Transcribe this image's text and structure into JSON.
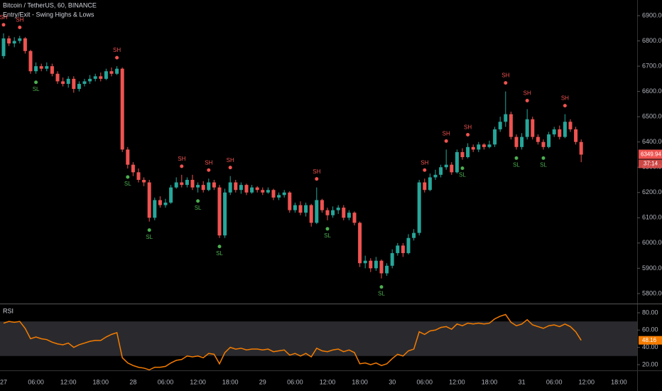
{
  "chart_data": [
    {
      "type": "candlestick",
      "title": "Bitcoin / TetherUS, 60, BINANCE",
      "subtitle": "Entry/Exit - Swing Highs & Lows",
      "up_color": "#26a69a",
      "down_color": "#ef5350",
      "sh_color": "#ef5350",
      "sl_color": "#4caf50",
      "ylim": [
        5766,
        6962
      ],
      "yticks": [
        {
          "value": 5800,
          "label": "5800.00"
        },
        {
          "value": 5900,
          "label": "5900.00"
        },
        {
          "value": 6000,
          "label": "6000.00"
        },
        {
          "value": 6100,
          "label": "6100.00"
        },
        {
          "value": 6200,
          "label": "6200.00"
        },
        {
          "value": 6300,
          "label": "6300.00"
        },
        {
          "value": 6400,
          "label": "6400.00"
        },
        {
          "value": 6500,
          "label": "6500.00"
        },
        {
          "value": 6600,
          "label": "6600.00"
        },
        {
          "value": 6700,
          "label": "6700.00"
        },
        {
          "value": 6800,
          "label": "6800.00"
        },
        {
          "value": 6900,
          "label": "6900.00"
        }
      ],
      "open": [
        6740,
        6810,
        6790,
        6800,
        6810,
        6760,
        6680,
        6700,
        6690,
        6700,
        6670,
        6640,
        6630,
        6650,
        6610,
        6630,
        6640,
        6650,
        6660,
        6650,
        6680,
        6670,
        6690,
        6370,
        6310,
        6280,
        6250,
        6240,
        6100,
        6170,
        6150,
        6160,
        6220,
        6240,
        6230,
        6250,
        6220,
        6230,
        6210,
        6240,
        6220,
        6030,
        6200,
        6240,
        6210,
        6230,
        6200,
        6220,
        6210,
        6200,
        6210,
        6180,
        6190,
        6200,
        6130,
        6150,
        6120,
        6150,
        6080,
        6170,
        6130,
        6110,
        6130,
        6140,
        6100,
        6120,
        6080,
        5920,
        5930,
        5900,
        5930,
        5880,
        5910,
        5960,
        5990,
        5960,
        6020,
        6040,
        6240,
        6210,
        6260,
        6270,
        6300,
        6310,
        6280,
        6360,
        6340,
        6380,
        6370,
        6390,
        6380,
        6390,
        6450,
        6480,
        6510,
        6420,
        6380,
        6420,
        6490,
        6420,
        6400,
        6380,
        6430,
        6450,
        6420,
        6480,
        6450,
        6400,
        null,
        null,
        null,
        null,
        null,
        null,
        null,
        null,
        null,
        null
      ],
      "high": [
        6830,
        6820,
        6815,
        6820,
        6815,
        6765,
        6715,
        6710,
        6715,
        6710,
        6680,
        6655,
        6660,
        6660,
        6640,
        6650,
        6665,
        6670,
        6675,
        6690,
        6695,
        6700,
        6695,
        6380,
        6320,
        6295,
        6260,
        6250,
        6180,
        6185,
        6175,
        6230,
        6260,
        6270,
        6260,
        6270,
        6240,
        6245,
        6255,
        6250,
        6230,
        6215,
        6265,
        6250,
        6240,
        6235,
        6230,
        6225,
        6220,
        6220,
        6215,
        6200,
        6210,
        6205,
        6160,
        6165,
        6160,
        6155,
        6220,
        6175,
        6140,
        6145,
        6150,
        6150,
        6130,
        6125,
        6085,
        5950,
        5940,
        5945,
        5935,
        5920,
        5975,
        6000,
        6000,
        6035,
        6055,
        6250,
        6255,
        6275,
        6290,
        6310,
        6370,
        6320,
        6370,
        6375,
        6395,
        6390,
        6400,
        6395,
        6405,
        6460,
        6500,
        6600,
        6520,
        6430,
        6435,
        6530,
        6500,
        6430,
        6410,
        6440,
        6460,
        6465,
        6510,
        6490,
        6460,
        6410,
        null,
        null,
        null,
        null,
        null,
        null,
        null,
        null,
        null,
        null
      ],
      "low": [
        6730,
        6780,
        6775,
        6790,
        6750,
        6670,
        6670,
        6680,
        6680,
        6660,
        6630,
        6620,
        6615,
        6595,
        6600,
        6620,
        6630,
        6640,
        6640,
        6645,
        6660,
        6665,
        6360,
        6295,
        6265,
        6240,
        6225,
        6085,
        6090,
        6140,
        6140,
        6155,
        6215,
        6220,
        6220,
        6210,
        6200,
        6200,
        6205,
        6210,
        6020,
        6020,
        6190,
        6200,
        6195,
        6190,
        6195,
        6200,
        6190,
        6195,
        6170,
        6170,
        6180,
        6120,
        6120,
        6110,
        6105,
        6065,
        6075,
        6120,
        6090,
        6100,
        6115,
        6090,
        6090,
        6070,
        5905,
        5900,
        5885,
        5890,
        5860,
        5870,
        5900,
        5950,
        5945,
        5955,
        6010,
        6030,
        6200,
        6205,
        6250,
        6260,
        6290,
        6270,
        6275,
        6330,
        6335,
        6360,
        6360,
        6370,
        6375,
        6380,
        6440,
        6460,
        6410,
        6370,
        6370,
        6410,
        6410,
        6390,
        6370,
        6375,
        6420,
        6410,
        6415,
        6440,
        6390,
        6320,
        null,
        null,
        null,
        null,
        null,
        null,
        null,
        null,
        null,
        null
      ],
      "close": [
        6810,
        6790,
        6800,
        6810,
        6760,
        6680,
        6700,
        6690,
        6700,
        6670,
        6640,
        6630,
        6650,
        6610,
        6630,
        6640,
        6650,
        6660,
        6650,
        6680,
        6670,
        6690,
        6370,
        6310,
        6280,
        6250,
        6240,
        6100,
        6170,
        6150,
        6160,
        6220,
        6240,
        6230,
        6250,
        6220,
        6230,
        6210,
        6240,
        6220,
        6030,
        6200,
        6240,
        6210,
        6230,
        6200,
        6220,
        6210,
        6200,
        6210,
        6180,
        6190,
        6200,
        6130,
        6150,
        6120,
        6150,
        6080,
        6170,
        6130,
        6110,
        6130,
        6140,
        6100,
        6120,
        6080,
        5920,
        5930,
        5900,
        5930,
        5880,
        5910,
        5960,
        5990,
        5960,
        6020,
        6040,
        6240,
        6210,
        6260,
        6270,
        6300,
        6310,
        6280,
        6360,
        6340,
        6380,
        6370,
        6390,
        6380,
        6390,
        6450,
        6480,
        6510,
        6420,
        6380,
        6420,
        6490,
        6420,
        6400,
        6380,
        6430,
        6450,
        6420,
        6480,
        6450,
        6400,
        6349.94,
        null,
        null,
        null,
        null,
        null,
        null,
        null,
        null,
        null,
        null
      ],
      "swing": [
        "SH",
        null,
        null,
        "SH",
        null,
        null,
        "SL",
        null,
        null,
        null,
        null,
        null,
        null,
        null,
        null,
        null,
        null,
        null,
        null,
        null,
        null,
        "SH",
        null,
        "SL",
        null,
        null,
        null,
        "SL",
        null,
        null,
        null,
        null,
        null,
        "SH",
        null,
        null,
        "SL",
        null,
        "SH",
        null,
        "SL",
        null,
        "SH",
        null,
        null,
        null,
        null,
        null,
        null,
        null,
        null,
        null,
        null,
        null,
        null,
        null,
        null,
        null,
        "SH",
        null,
        "SL",
        null,
        null,
        null,
        null,
        null,
        null,
        null,
        null,
        null,
        "SL",
        null,
        null,
        null,
        null,
        null,
        null,
        null,
        "SH",
        null,
        null,
        null,
        "SH",
        null,
        null,
        "SL",
        "SH",
        null,
        null,
        null,
        null,
        null,
        null,
        "SH",
        null,
        "SL",
        null,
        "SH",
        null,
        null,
        "SL",
        null,
        null,
        null,
        "SH",
        null,
        null,
        null,
        null,
        null,
        null,
        null,
        null,
        null,
        null,
        null,
        null,
        null
      ],
      "countdown": "37:14"
    },
    {
      "type": "line",
      "title": "RSI",
      "color": "#f57c00",
      "band": [
        30,
        70
      ],
      "band_color": "#2a2a2e",
      "ylim": [
        14.2,
        88.2
      ],
      "yticks": [
        {
          "value": 20,
          "label": "20.00"
        },
        {
          "value": 40,
          "label": "40.00"
        },
        {
          "value": 60,
          "label": "60.00"
        },
        {
          "value": 80,
          "label": "80.00"
        }
      ],
      "categories": [
        "27",
        null,
        null,
        null,
        null,
        null,
        "06:00",
        null,
        null,
        null,
        null,
        null,
        "12:00",
        null,
        null,
        null,
        null,
        null,
        "18:00",
        null,
        null,
        null,
        null,
        null,
        "28",
        null,
        null,
        null,
        null,
        null,
        "06:00",
        null,
        null,
        null,
        null,
        null,
        "12:00",
        null,
        null,
        null,
        null,
        null,
        "18:00",
        null,
        null,
        null,
        null,
        null,
        "29",
        null,
        null,
        null,
        null,
        null,
        "06:00",
        null,
        null,
        null,
        null,
        null,
        "12:00",
        null,
        null,
        null,
        null,
        null,
        "18:00",
        null,
        null,
        null,
        null,
        null,
        "30",
        null,
        null,
        null,
        null,
        null,
        "06:00",
        null,
        null,
        null,
        null,
        null,
        "12:00",
        null,
        null,
        null,
        null,
        null,
        "18:00",
        null,
        null,
        null,
        null,
        null,
        "31",
        null,
        null,
        null,
        null,
        null,
        "06:00",
        null,
        null,
        null,
        null,
        null,
        "12:00",
        null,
        null,
        null,
        null,
        null,
        "18:00",
        null,
        null,
        null
      ],
      "values": [
        68,
        70,
        69,
        70,
        62,
        50,
        52,
        50,
        49,
        46,
        44,
        43,
        45,
        40,
        43,
        45,
        47,
        48,
        48,
        52,
        55,
        57,
        28,
        22,
        19,
        17,
        16,
        14,
        17,
        17,
        18,
        22,
        25,
        26,
        30,
        29,
        30,
        28,
        33,
        32,
        21,
        34,
        40,
        38,
        39,
        37,
        38,
        38,
        37,
        38,
        35,
        36,
        37,
        31,
        33,
        30,
        33,
        29,
        39,
        36,
        35,
        37,
        38,
        35,
        37,
        34,
        21,
        22,
        20,
        22,
        19,
        21,
        27,
        32,
        30,
        36,
        38,
        58,
        55,
        59,
        60,
        63,
        64,
        61,
        67,
        65,
        68,
        67,
        68,
        67,
        68,
        73,
        76,
        78,
        69,
        65,
        67,
        72,
        66,
        64,
        62,
        65,
        66,
        64,
        67,
        64,
        58,
        48.16,
        null,
        null,
        null,
        null,
        null,
        null,
        null,
        null,
        null,
        null
      ]
    }
  ]
}
